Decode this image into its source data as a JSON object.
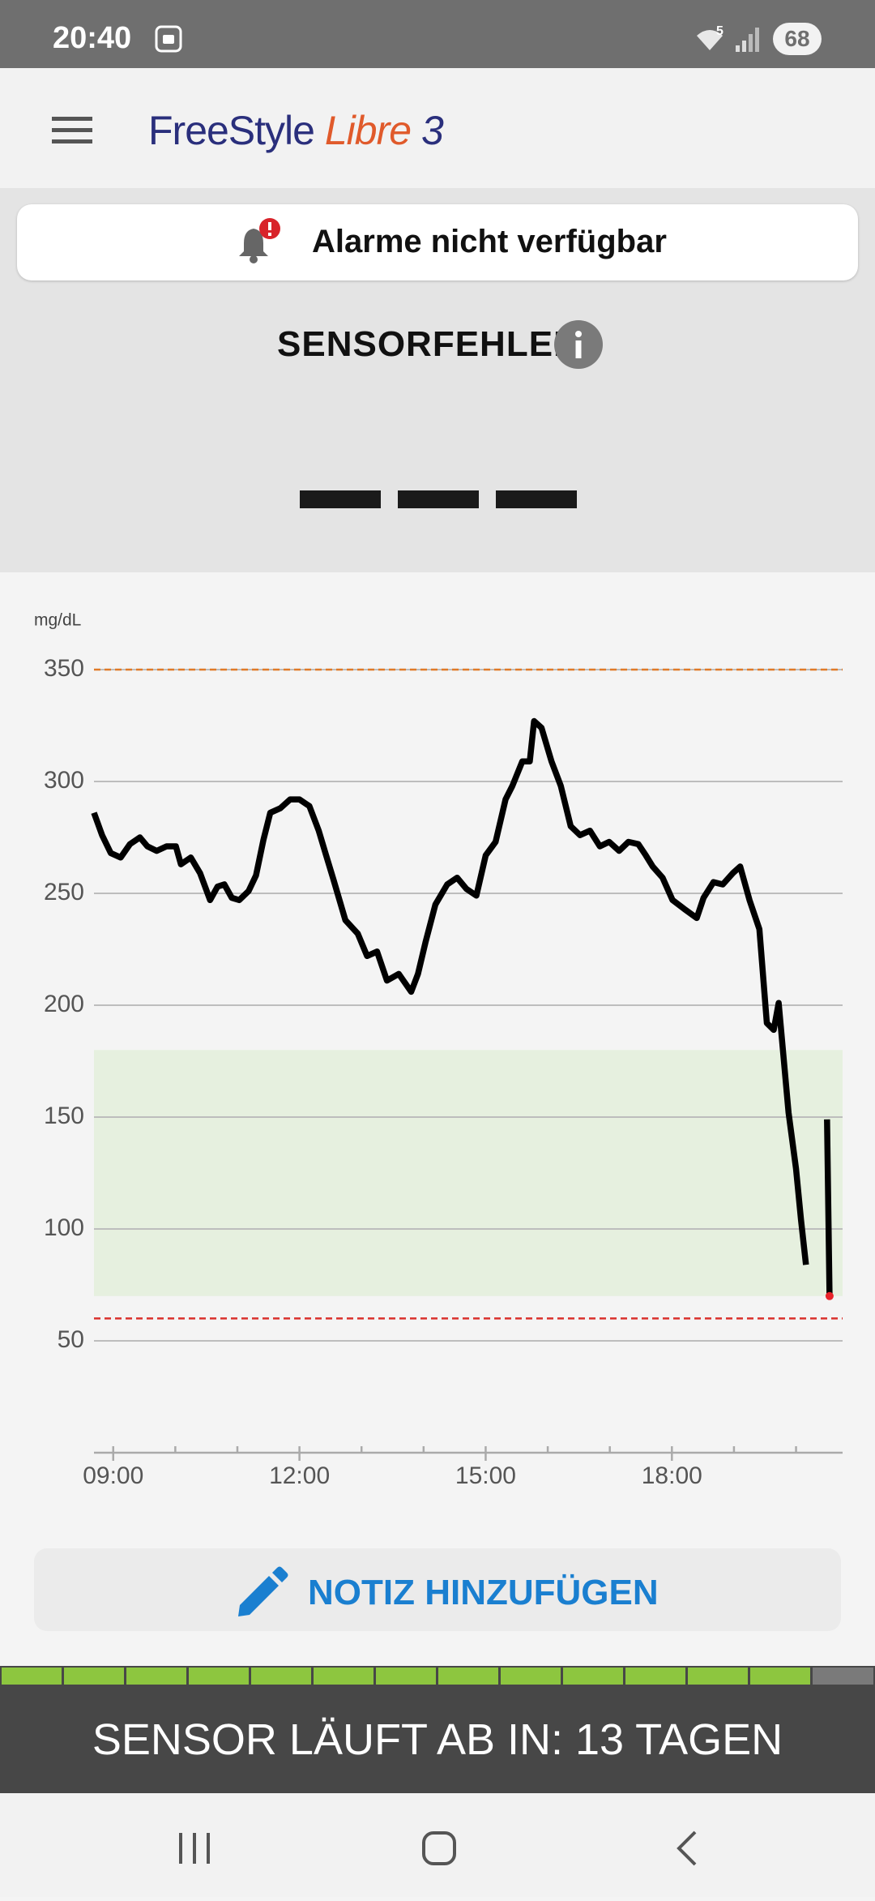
{
  "status_bar": {
    "time": "20:40",
    "wifi_label": "5",
    "battery": "68"
  },
  "header": {
    "logo_brand": "FreeStyle",
    "logo_product": "Libre",
    "logo_version": "3"
  },
  "alarm_banner": {
    "text": "Alarme nicht verfügbar"
  },
  "sensor_status": {
    "text": "SENSORFEHLER"
  },
  "chart_data": {
    "type": "line",
    "y_label": "mg/dL",
    "color": "#000000",
    "x": [
      8.69,
      8.82,
      8.96,
      9.12,
      9.27,
      9.43,
      9.55,
      9.7,
      9.86,
      10.01,
      10.09,
      10.25,
      10.4,
      10.56,
      10.68,
      10.79,
      10.91,
      11.03,
      11.18,
      11.3,
      11.42,
      11.53,
      11.69,
      11.85,
      12.0,
      12.16,
      12.31,
      12.43,
      12.55,
      12.74,
      12.94,
      13.09,
      13.25,
      13.41,
      13.6,
      13.8,
      13.91,
      14.03,
      14.19,
      14.38,
      14.54,
      14.69,
      14.85,
      15.0,
      15.16,
      15.32,
      15.43,
      15.59,
      15.71,
      15.78,
      15.9,
      16.06,
      16.21,
      16.37,
      16.52,
      16.68,
      16.84,
      16.99,
      17.15,
      17.3,
      17.46,
      17.58,
      17.69,
      17.85,
      18.01,
      18.2,
      18.4,
      18.51,
      18.67,
      18.82,
      18.98,
      19.1,
      19.25,
      19.41,
      19.53,
      19.64,
      19.72,
      19.88,
      20.0,
      20.08,
      20.16,
      20.3,
      20.5,
      20.54
    ],
    "values": [
      286,
      276,
      268,
      266,
      272,
      275,
      271,
      269,
      271,
      271,
      263,
      266,
      259,
      247,
      253,
      254,
      248,
      247,
      251,
      258,
      274,
      286,
      288,
      292,
      292,
      289,
      278,
      267,
      256,
      238,
      232,
      222,
      224,
      211,
      214,
      206,
      214,
      228,
      245,
      254,
      257,
      252,
      249,
      267,
      273,
      292,
      298,
      309,
      309,
      327,
      324,
      309,
      298,
      280,
      276,
      278,
      271,
      273,
      269,
      273,
      272,
      267,
      262,
      257,
      247,
      243,
      239,
      248,
      255,
      254,
      259,
      262,
      247,
      234,
      192,
      189,
      201,
      152,
      127,
      104,
      84,
      null,
      149,
      70
    ],
    "last_point_color": "#e8232a",
    "target_range": [
      70,
      180
    ],
    "target_color": "#e6f0df",
    "high_line": 350,
    "high_color": "#e07a28",
    "low_line": 60,
    "low_color": "#d9302c",
    "xlim": [
      8.69,
      20.75
    ],
    "xticks": [
      {
        "value": 9,
        "label": "09:00"
      },
      {
        "value": 12,
        "label": "12:00"
      },
      {
        "value": 15,
        "label": "15:00"
      },
      {
        "value": 18,
        "label": "18:00"
      }
    ],
    "xminor_ticks": [
      10,
      11,
      13,
      14,
      16,
      17,
      19,
      20
    ],
    "ylim": [
      0,
      350
    ],
    "yticks": [
      50,
      100,
      150,
      200,
      250,
      300,
      350
    ],
    "grid": true
  },
  "note_button": {
    "text": "NOTIZ HINZUFÜGEN"
  },
  "sensor_expiry": {
    "text": "SENSOR LÄUFT AB IN: 13 TAGEN"
  }
}
